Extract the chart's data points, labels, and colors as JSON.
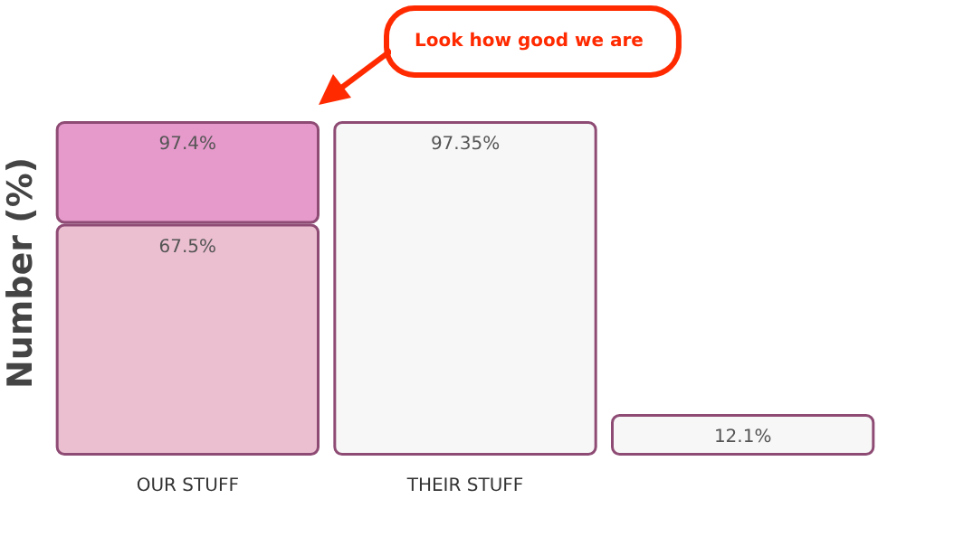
{
  "chart_data": {
    "type": "bar",
    "stacked": true,
    "ylabel": "Number (%)",
    "categories": [
      "OUR STUFF",
      "THEIR STUFF",
      null
    ],
    "series": [
      {
        "colors": [
          "#ebbfd0",
          "#f7f7f7",
          "#f7f7f7"
        ],
        "values": [
          67.5,
          97.35,
          12.1
        ],
        "value_labels": [
          "67.5%",
          "97.35%",
          "12.1%"
        ]
      },
      {
        "color": "#e59acb",
        "values": [
          29.9,
          null,
          null
        ]
      }
    ],
    "totals": [
      "97.4%",
      null,
      null
    ],
    "annotations": [
      "Look how good we are"
    ]
  }
}
